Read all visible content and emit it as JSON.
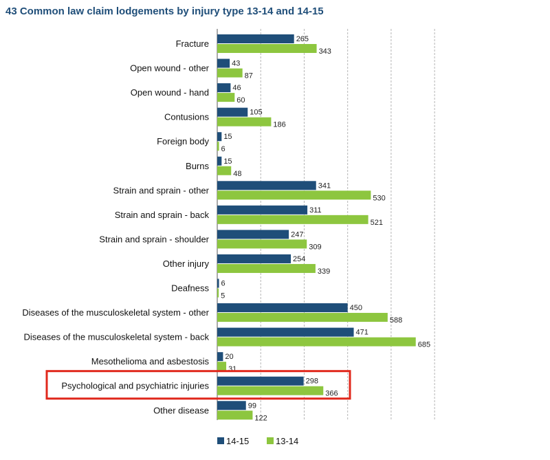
{
  "chart_data": {
    "type": "bar",
    "orientation": "horizontal",
    "title": "43 Common law claim lodgements by injury type 13-14 and 14-15",
    "categories": [
      "Fracture",
      "Open wound - other",
      "Open wound - hand",
      "Contusions",
      "Foreign body",
      "Burns",
      "Strain and sprain - other",
      "Strain and sprain - back",
      "Strain and sprain - shoulder",
      "Other injury",
      "Deafness",
      "Diseases of the musculoskeletal system - other",
      "Diseases of the musculoskeletal system - back",
      "Mesothelioma and asbestosis",
      "Psychological and psychiatric injuries",
      "Other disease"
    ],
    "series": [
      {
        "name": "14-15",
        "color": "#1f4e79",
        "values": [
          265,
          43,
          46,
          105,
          15,
          15,
          341,
          311,
          247,
          254,
          6,
          450,
          471,
          20,
          298,
          99
        ]
      },
      {
        "name": "13-14",
        "color": "#8dc63f",
        "values": [
          343,
          87,
          60,
          186,
          6,
          48,
          530,
          521,
          309,
          339,
          5,
          588,
          685,
          31,
          366,
          122
        ]
      }
    ],
    "xlim": [
      0,
      750
    ],
    "gridlines": [
      150,
      300,
      450,
      600,
      750
    ],
    "grid": true,
    "legend_position": "bottom",
    "highlighted_category": "Psychological and psychiatric injuries",
    "highlight_color": "#e0281c"
  }
}
